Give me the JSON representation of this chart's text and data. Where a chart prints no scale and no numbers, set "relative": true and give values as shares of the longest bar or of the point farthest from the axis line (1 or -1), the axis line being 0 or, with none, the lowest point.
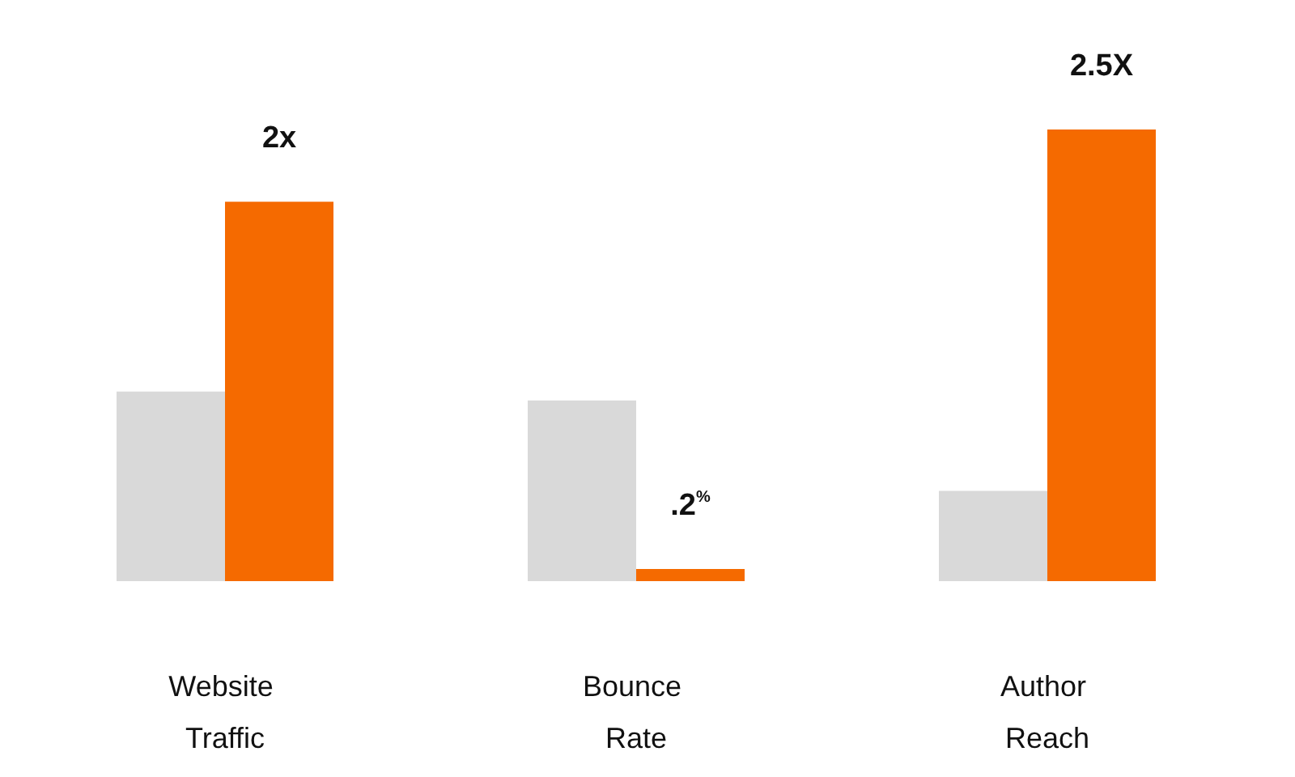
{
  "chart_data": {
    "type": "bar",
    "relative": true,
    "categories": [
      "Website Traffic",
      "Bounce Rate",
      "Author Reach"
    ],
    "series": [
      {
        "color": "#d9d9d9",
        "values": [
          0.42,
          0.4,
          0.2
        ]
      },
      {
        "color": "#f56a00",
        "values": [
          0.84,
          0.027,
          1
        ]
      }
    ],
    "annotations": [
      {
        "text": "2x",
        "x": "Website Traffic",
        "y": 0.84
      },
      {
        "text": ".2$^{%}$",
        "x": "Bounce Rate",
        "y": 0.027
      },
      {
        "text": "2.5X",
        "x": "Author Reach",
        "y": 1
      }
    ]
  }
}
